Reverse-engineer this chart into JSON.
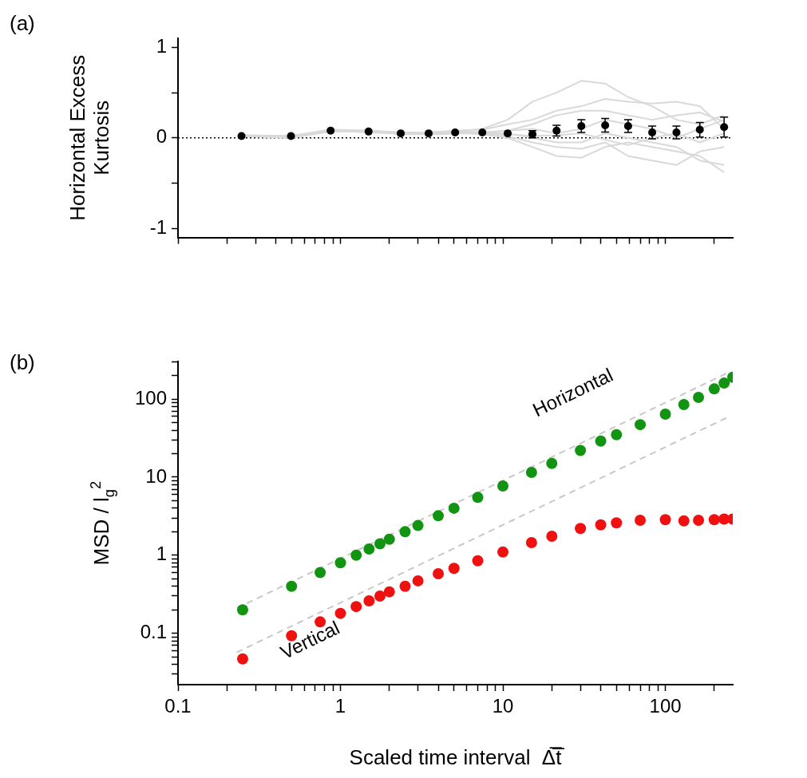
{
  "chart_data": [
    {
      "type": "scatter",
      "title": "(a)",
      "ylabel": "Horizontal Excess Kurtosis",
      "log": "x",
      "grid": false,
      "legend": false,
      "tick_labels": "y",
      "marker": "circle",
      "x": [
        0.246,
        0.496,
        0.87,
        1.49,
        2.35,
        3.49,
        5.08,
        7.47,
        10.7,
        15.2,
        21.4,
        30.4,
        42.6,
        59,
        83,
        117,
        163,
        230
      ],
      "xlim": [
        0.1,
        260
      ],
      "xticks": [
        0.1,
        {
          "value": 0.2,
          "label": null
        },
        {
          "value": 0.3,
          "label": null
        },
        {
          "value": 0.4,
          "label": null
        },
        {
          "value": 0.5,
          "label": null
        },
        {
          "value": 0.6,
          "label": null
        },
        {
          "value": 0.7,
          "label": null
        },
        {
          "value": 0.8,
          "label": null
        },
        {
          "value": 0.9,
          "label": null
        },
        1,
        {
          "value": 2,
          "label": null
        },
        {
          "value": 3,
          "label": null
        },
        {
          "value": 4,
          "label": null
        },
        {
          "value": 5,
          "label": null
        },
        {
          "value": 6,
          "label": null
        },
        {
          "value": 7,
          "label": null
        },
        {
          "value": 8,
          "label": null
        },
        {
          "value": 9,
          "label": null
        },
        10,
        {
          "value": 20,
          "label": null
        },
        {
          "value": 30,
          "label": null
        },
        {
          "value": 40,
          "label": null
        },
        {
          "value": 50,
          "label": null
        },
        {
          "value": 60,
          "label": null
        },
        {
          "value": 70,
          "label": null
        },
        {
          "value": 80,
          "label": null
        },
        {
          "value": 90,
          "label": null
        },
        100,
        {
          "value": 200,
          "label": null
        }
      ],
      "ylim": [
        -1.1,
        1.1
      ],
      "yticks": [
        -1,
        {
          "value": -0.5,
          "label": null
        },
        0,
        {
          "value": 0.5,
          "label": null
        },
        1
      ],
      "ref_lines": [
        {
          "axis": "y",
          "value": 0,
          "color": "#000000",
          "line_style": "dotted"
        }
      ],
      "series": [
        {
          "color": "#000000",
          "values": [
            0.02,
            0.02,
            0.08,
            0.07,
            0.05,
            0.05,
            0.06,
            0.06,
            0.05,
            0.04,
            0.08,
            0.13,
            0.14,
            0.13,
            0.06,
            0.06,
            0.09,
            0.12
          ],
          "errors": [
            null,
            null,
            null,
            null,
            null,
            null,
            null,
            null,
            null,
            0.04,
            0.06,
            0.07,
            0.075,
            0.07,
            0.07,
            0.07,
            0.08,
            0.11
          ]
        },
        {
          "type": "line",
          "marker": "none",
          "color": "#d9d9d9",
          "values": [
            0.02,
            0.01,
            0.08,
            0.07,
            0.05,
            0.05,
            0.07,
            0.1,
            0.2,
            0.4,
            0.5,
            0.63,
            0.6,
            0.45,
            0.35,
            0.2,
            0.15,
            0.25
          ]
        },
        {
          "type": "line",
          "marker": "none",
          "color": "#d9d9d9",
          "values": [
            0.02,
            0.02,
            0.09,
            0.08,
            0.06,
            0.06,
            0.08,
            0.09,
            0.15,
            0.2,
            0.3,
            0.35,
            0.43,
            0.4,
            0.38,
            0.4,
            0.35,
            0.1
          ]
        },
        {
          "type": "line",
          "marker": "none",
          "color": "#d9d9d9",
          "values": [
            0.03,
            0.02,
            0.07,
            0.07,
            0.05,
            0.04,
            0.05,
            0.06,
            0.08,
            0.15,
            0.25,
            0.3,
            0.3,
            0.25,
            0.2,
            0.25,
            0.28,
            0.18
          ]
        },
        {
          "type": "line",
          "marker": "none",
          "color": "#d9d9d9",
          "values": [
            0.02,
            0.01,
            0.08,
            0.06,
            0.05,
            0.05,
            0.06,
            0.04,
            0.0,
            -0.1,
            -0.2,
            -0.22,
            -0.1,
            -0.05,
            -0.1,
            -0.15,
            -0.2,
            -0.38
          ]
        },
        {
          "type": "line",
          "marker": "none",
          "color": "#d9d9d9",
          "values": [
            0.02,
            0.0,
            0.07,
            0.07,
            0.04,
            0.04,
            0.05,
            0.05,
            0.02,
            -0.05,
            -0.1,
            -0.12,
            -0.05,
            -0.2,
            -0.25,
            -0.3,
            -0.15,
            -0.1
          ]
        },
        {
          "type": "line",
          "marker": "none",
          "color": "#d9d9d9",
          "values": [
            0.02,
            0.01,
            0.08,
            0.07,
            0.05,
            0.05,
            0.06,
            0.05,
            0.05,
            0.0,
            -0.05,
            -0.05,
            0.05,
            0.0,
            -0.05,
            -0.1,
            -0.25,
            -0.3
          ]
        },
        {
          "type": "line",
          "marker": "none",
          "color": "#d9d9d9",
          "values": [
            0.03,
            0.02,
            0.09,
            0.08,
            0.06,
            0.06,
            0.07,
            0.06,
            0.08,
            0.1,
            0.05,
            0.1,
            0.2,
            0.15,
            0.1,
            0.0,
            0.1,
            0.2
          ]
        },
        {
          "type": "line",
          "marker": "none",
          "color": "#d9d9d9",
          "values": [
            0.02,
            0.01,
            0.08,
            0.07,
            0.05,
            0.05,
            0.07,
            0.06,
            0.04,
            0.02,
            0.03,
            0.05,
            -0.02,
            -0.08,
            0.0,
            0.05,
            -0.05,
            0.05
          ]
        }
      ]
    },
    {
      "type": "scatter",
      "title": "(b)",
      "xlabel": "Scaled time interval  Δ̅t̅",
      "ylabel": "MSD / l$_{g}$$^{2}$",
      "log": "xy",
      "grid": false,
      "legend": false,
      "marker": "circle",
      "xlim": [
        0.1,
        260
      ],
      "xticks": [
        0.1,
        {
          "value": 0.2,
          "label": null
        },
        {
          "value": 0.3,
          "label": null
        },
        {
          "value": 0.4,
          "label": null
        },
        {
          "value": 0.5,
          "label": null
        },
        {
          "value": 0.6,
          "label": null
        },
        {
          "value": 0.7,
          "label": null
        },
        {
          "value": 0.8,
          "label": null
        },
        {
          "value": 0.9,
          "label": null
        },
        1,
        {
          "value": 2,
          "label": null
        },
        {
          "value": 3,
          "label": null
        },
        {
          "value": 4,
          "label": null
        },
        {
          "value": 5,
          "label": null
        },
        {
          "value": 6,
          "label": null
        },
        {
          "value": 7,
          "label": null
        },
        {
          "value": 8,
          "label": null
        },
        {
          "value": 9,
          "label": null
        },
        10,
        {
          "value": 20,
          "label": null
        },
        {
          "value": 30,
          "label": null
        },
        {
          "value": 40,
          "label": null
        },
        {
          "value": 50,
          "label": null
        },
        {
          "value": 60,
          "label": null
        },
        {
          "value": 70,
          "label": null
        },
        {
          "value": 80,
          "label": null
        },
        {
          "value": 90,
          "label": null
        },
        100,
        {
          "value": 200,
          "label": null
        }
      ],
      "ylim": [
        0.022,
        300
      ],
      "yticks": [
        {
          "value": 0.03,
          "label": null
        },
        {
          "value": 0.04,
          "label": null
        },
        {
          "value": 0.05,
          "label": null
        },
        {
          "value": 0.06,
          "label": null
        },
        {
          "value": 0.07,
          "label": null
        },
        {
          "value": 0.08,
          "label": null
        },
        {
          "value": 0.09,
          "label": null
        },
        0.1,
        {
          "value": 0.2,
          "label": null
        },
        {
          "value": 0.3,
          "label": null
        },
        {
          "value": 0.4,
          "label": null
        },
        {
          "value": 0.5,
          "label": null
        },
        {
          "value": 0.6,
          "label": null
        },
        {
          "value": 0.7,
          "label": null
        },
        {
          "value": 0.8,
          "label": null
        },
        {
          "value": 0.9,
          "label": null
        },
        1,
        {
          "value": 2,
          "label": null
        },
        {
          "value": 3,
          "label": null
        },
        {
          "value": 4,
          "label": null
        },
        {
          "value": 5,
          "label": null
        },
        {
          "value": 6,
          "label": null
        },
        {
          "value": 7,
          "label": null
        },
        {
          "value": 8,
          "label": null
        },
        {
          "value": 9,
          "label": null
        },
        10,
        {
          "value": 20,
          "label": null
        },
        {
          "value": 30,
          "label": null
        },
        {
          "value": 40,
          "label": null
        },
        {
          "value": 50,
          "label": null
        },
        {
          "value": 60,
          "label": null
        },
        {
          "value": 70,
          "label": null
        },
        {
          "value": 80,
          "label": null
        },
        {
          "value": 90,
          "label": null
        },
        100,
        {
          "value": 200,
          "label": null
        },
        {
          "value": 300,
          "label": null
        }
      ],
      "series": [
        {
          "name": "Horizontal",
          "color": "#129412",
          "x": [
            0.25,
            0.5,
            0.75,
            1.0,
            1.25,
            1.5,
            1.75,
            2,
            2.5,
            3,
            4,
            5,
            7,
            10,
            15,
            20,
            30,
            40,
            50,
            70,
            100,
            130,
            160,
            200,
            230,
            260
          ],
          "values": [
            0.2,
            0.4,
            0.6,
            0.8,
            1.0,
            1.2,
            1.4,
            1.6,
            2.0,
            2.4,
            3.2,
            4.0,
            5.5,
            7.7,
            11.5,
            15,
            22,
            29,
            35,
            47,
            64,
            85,
            105,
            135,
            160,
            190
          ]
        },
        {
          "name": "Vertical",
          "color": "#f01010",
          "x": [
            0.25,
            0.5,
            0.75,
            1.0,
            1.25,
            1.5,
            1.75,
            2,
            2.5,
            3,
            4,
            5,
            7,
            10,
            15,
            20,
            30,
            40,
            50,
            70,
            100,
            130,
            160,
            200,
            230,
            260
          ],
          "values": [
            0.047,
            0.093,
            0.14,
            0.18,
            0.22,
            0.26,
            0.3,
            0.34,
            0.4,
            0.47,
            0.58,
            0.68,
            0.85,
            1.1,
            1.45,
            1.75,
            2.2,
            2.45,
            2.6,
            2.8,
            2.85,
            2.75,
            2.8,
            2.85,
            2.9,
            2.9
          ]
        },
        {
          "type": "line",
          "marker": "none",
          "line_style": "dashed",
          "color": "#c8c8c8",
          "x": [
            0.23,
            240
          ],
          "values": [
            0.21,
            215
          ]
        },
        {
          "type": "line",
          "marker": "none",
          "line_style": "dashed",
          "color": "#c8c8c8",
          "x": [
            0.23,
            240
          ],
          "values": [
            0.057,
            58
          ]
        }
      ]
    }
  ]
}
